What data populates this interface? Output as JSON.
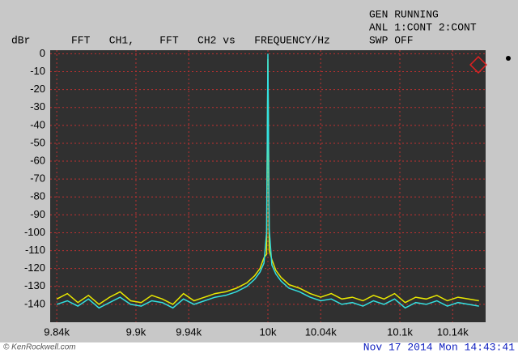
{
  "chart_data": {
    "type": "line",
    "title": "FFT   CH1,    FFT   CH2 vs   FREQUENCY/Hz",
    "y_label": "dBr",
    "status": [
      "GEN RUNNING",
      "ANL 1:CONT 2:CONT",
      "SWP OFF"
    ],
    "timestamp": "Nov 17 2014 Mon 14:43:41",
    "watermark": "© KenRockwell.com",
    "x": [
      9840,
      9848,
      9856,
      9864,
      9872,
      9880,
      9888,
      9896,
      9904,
      9912,
      9920,
      9928,
      9936,
      9944,
      9952,
      9960,
      9968,
      9976,
      9984,
      9990,
      9994,
      9997,
      9999,
      10000,
      10001,
      10003,
      10006,
      10010,
      10016,
      10024,
      10032,
      10040,
      10048,
      10056,
      10064,
      10072,
      10080,
      10088,
      10096,
      10104,
      10112,
      10120,
      10128,
      10136,
      10144,
      10152,
      10160
    ],
    "series": [
      {
        "color": "#e8e800",
        "values": [
          -137,
          -134,
          -139,
          -135,
          -140,
          -136,
          -133,
          -138,
          -139,
          -135,
          -137,
          -140,
          -134,
          -138,
          -136,
          -134,
          -133,
          -131,
          -128,
          -124,
          -120,
          -114,
          -112,
          -3,
          -110,
          -115,
          -121,
          -125,
          -129,
          -131,
          -134,
          -136,
          -134,
          -137,
          -136,
          -138,
          -135,
          -137,
          -134,
          -139,
          -136,
          -137,
          -135,
          -138,
          -136,
          -137,
          -138
        ]
      },
      {
        "color": "#33e0e0",
        "values": [
          -140,
          -138,
          -141,
          -137,
          -142,
          -139,
          -136,
          -140,
          -141,
          -138,
          -139,
          -142,
          -137,
          -140,
          -138,
          -136,
          -135,
          -133,
          -130,
          -126,
          -122,
          -117,
          -100,
          0,
          -98,
          -118,
          -123,
          -127,
          -131,
          -133,
          -136,
          -138,
          -137,
          -140,
          -139,
          -141,
          -138,
          -140,
          -137,
          -142,
          -139,
          -140,
          -138,
          -141,
          -139,
          -140,
          -141
        ]
      }
    ],
    "xlim": [
      9835,
      10165
    ],
    "xticks": [
      {
        "value": 9840,
        "label": "9.84k"
      },
      {
        "value": 9900,
        "label": "9.9k"
      },
      {
        "value": 9940,
        "label": "9.94k"
      },
      {
        "value": 10000,
        "label": "10k"
      },
      {
        "value": 10040,
        "label": "10.04k"
      },
      {
        "value": 10100,
        "label": "10.1k"
      },
      {
        "value": 10140,
        "label": "10.14k"
      }
    ],
    "ylim": [
      -150,
      2
    ],
    "yticks": [
      0,
      -10,
      -20,
      -30,
      -40,
      -50,
      -60,
      -70,
      -80,
      -90,
      -100,
      -110,
      -120,
      -130,
      -140
    ],
    "grid": true
  }
}
